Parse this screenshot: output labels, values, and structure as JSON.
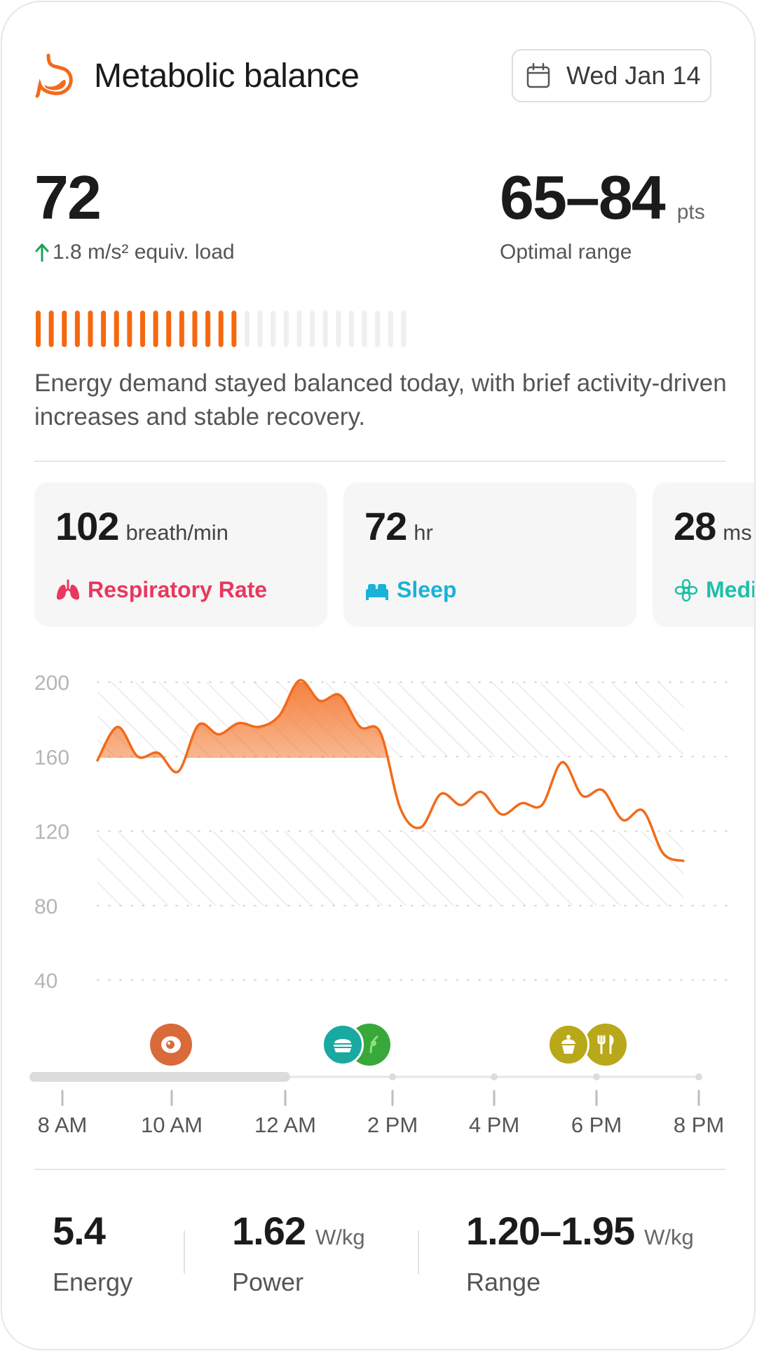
{
  "header": {
    "title": "Metabolic balance",
    "date": "Wed Jan 14",
    "icon": "stomach-icon"
  },
  "score": {
    "value": "72",
    "delta": "1.8 m/s² equiv. load",
    "range_value": "65–84",
    "range_unit": "pts",
    "range_label": "Optimal range",
    "progress_filled": 16,
    "progress_total": 29
  },
  "description": "Energy demand stayed balanced today, with brief activity-driven increases and stable recovery.",
  "metrics": [
    {
      "value": "102",
      "unit": "breath/min",
      "label": "Respiratory Rate",
      "color": "#e8385e",
      "icon": "lungs-icon"
    },
    {
      "value": "72",
      "unit": "hr",
      "label": "Sleep",
      "color": "#19b2d8",
      "icon": "bed-icon"
    },
    {
      "value": "28",
      "unit": "ms",
      "label": "Meditation",
      "color": "#1fbfa8",
      "icon": "flower-icon"
    }
  ],
  "chart_data": {
    "type": "area",
    "y_ticks": [
      "200",
      "160",
      "120",
      "80",
      "40"
    ],
    "ylim": [
      40,
      200
    ],
    "optimal_band": [
      80,
      200
    ],
    "series_color": "#f26a1b",
    "values": [
      158,
      176,
      160,
      162,
      152,
      177,
      172,
      178,
      176,
      182,
      201,
      190,
      193,
      176,
      173,
      132,
      122,
      140,
      134,
      141,
      129,
      135,
      134,
      157,
      139,
      142,
      126,
      131,
      108,
      104
    ]
  },
  "meals": [
    {
      "icon": "egg-icon",
      "color": "#d96a3a"
    },
    {
      "icon": "burger-icon",
      "color": "#19a9a0"
    },
    {
      "icon": "salad-icon",
      "color": "#38a83a"
    },
    {
      "icon": "cupcake-icon",
      "color": "#b8a81a"
    },
    {
      "icon": "fork-knife-icon",
      "color": "#b8a81a"
    }
  ],
  "timeline": {
    "labels": [
      "8 AM",
      "10 AM",
      "12 AM",
      "2 PM",
      "4 PM",
      "6 PM",
      "8 PM"
    ],
    "progress_end": "12 AM"
  },
  "stats": [
    {
      "value": "5.4",
      "unit": "",
      "label": "Energy"
    },
    {
      "value": "1.62",
      "unit": "W/kg",
      "label": "Power"
    },
    {
      "value": "1.20–1.95",
      "unit": "W/kg",
      "label": "Range"
    }
  ]
}
